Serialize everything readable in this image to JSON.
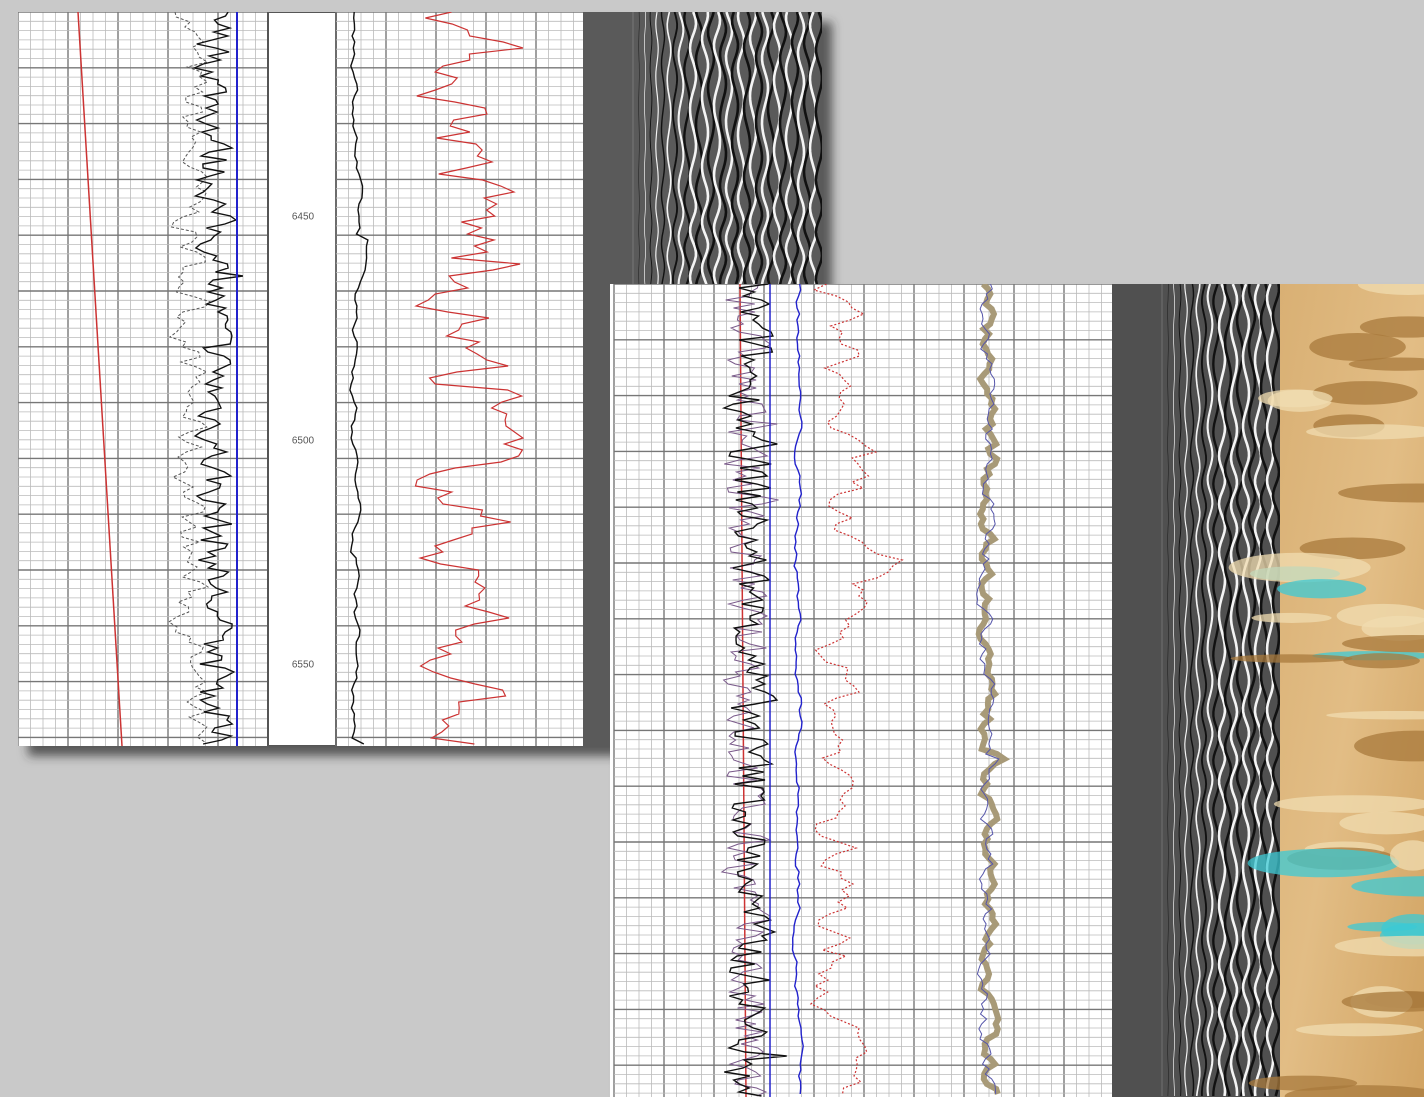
{
  "depth_labels": [
    "6450",
    "6500",
    "6550"
  ]
}
